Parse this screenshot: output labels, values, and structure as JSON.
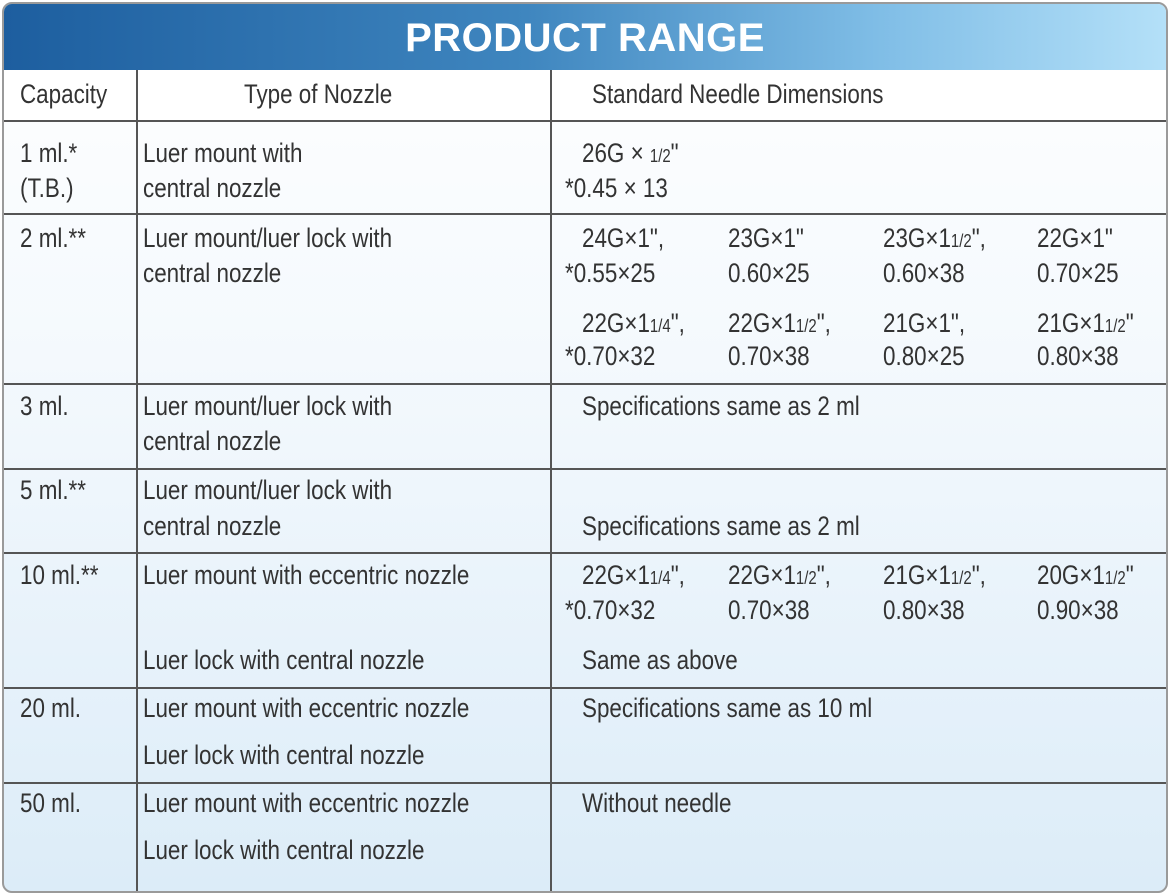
{
  "title": "PRODUCT RANGE",
  "headers": {
    "capacity": "Capacity",
    "nozzle": "Type of Nozzle",
    "dimensions": "Standard Needle Dimensions"
  },
  "colors": {
    "title_gradient_start": "#1d5e9f",
    "title_gradient_end": "#b4e0f8",
    "text": "#333333",
    "grid": "#555555"
  },
  "rows": [
    {
      "capacity": [
        "1 ml.*",
        "(T.B.)"
      ],
      "nozzle": [
        "Luer mount with",
        "central nozzle"
      ],
      "single": [
        {
          "gauge": "26G × ",
          "frac": "1/2",
          "suffix": "\"",
          "metric": "*0.45 × 13"
        }
      ]
    },
    {
      "capacity": [
        "2 ml.**"
      ],
      "nozzle": [
        "Luer mount/luer lock with",
        "central nozzle"
      ],
      "grid": [
        [
          {
            "gauge": "24G×1",
            "frac": "",
            "suffix": "\",",
            "metric": "*0.55×25"
          },
          {
            "gauge": "23G×1",
            "frac": "",
            "suffix": "\"",
            "metric": "0.60×25"
          },
          {
            "gauge": "23G×1",
            "frac": "1/2",
            "suffix": "\",",
            "metric": "0.60×38"
          },
          {
            "gauge": "22G×1",
            "frac": "",
            "suffix": "\"",
            "metric": "0.70×25"
          }
        ],
        [
          {
            "gauge": "22G×1",
            "frac": "1/4",
            "suffix": "\",",
            "metric": "*0.70×32"
          },
          {
            "gauge": "22G×1",
            "frac": "1/2",
            "suffix": "\",",
            "metric": "0.70×38"
          },
          {
            "gauge": "21G×1",
            "frac": "",
            "suffix": "\",",
            "metric": "0.80×25"
          },
          {
            "gauge": "21G×1",
            "frac": "1/2",
            "suffix": "\"",
            "metric": "0.80×38"
          }
        ]
      ]
    },
    {
      "capacity": [
        "3 ml."
      ],
      "nozzle": [
        "Luer mount/luer lock with",
        "central nozzle"
      ],
      "note": "Specifications same as 2 ml"
    },
    {
      "capacity": [
        "5 ml.**"
      ],
      "nozzle": [
        "Luer mount/luer lock with",
        "central nozzle"
      ],
      "note": "Specifications same as 2 ml"
    },
    {
      "capacity": [
        "10 ml.**"
      ],
      "nozzle": [
        "Luer mount with eccentric nozzle",
        "Luer lock with central nozzle"
      ],
      "grid": [
        [
          {
            "gauge": "22G×1",
            "frac": "1/4",
            "suffix": "\",",
            "metric": "*0.70×32"
          },
          {
            "gauge": "22G×1",
            "frac": "1/2",
            "suffix": "\",",
            "metric": "0.70×38"
          },
          {
            "gauge": "21G×1",
            "frac": "1/2",
            "suffix": "\",",
            "metric": "0.80×38"
          },
          {
            "gauge": "20G×1",
            "frac": "1/2",
            "suffix": "\"",
            "metric": "0.90×38"
          }
        ]
      ],
      "note": "Same as above"
    },
    {
      "capacity": [
        "20 ml."
      ],
      "nozzle": [
        "Luer mount with eccentric nozzle",
        "Luer lock with central nozzle"
      ],
      "note": "Specifications same as 10 ml"
    },
    {
      "capacity": [
        "50 ml."
      ],
      "nozzle": [
        "Luer mount with eccentric nozzle",
        "Luer lock with central nozzle"
      ],
      "note": "Without needle"
    }
  ]
}
